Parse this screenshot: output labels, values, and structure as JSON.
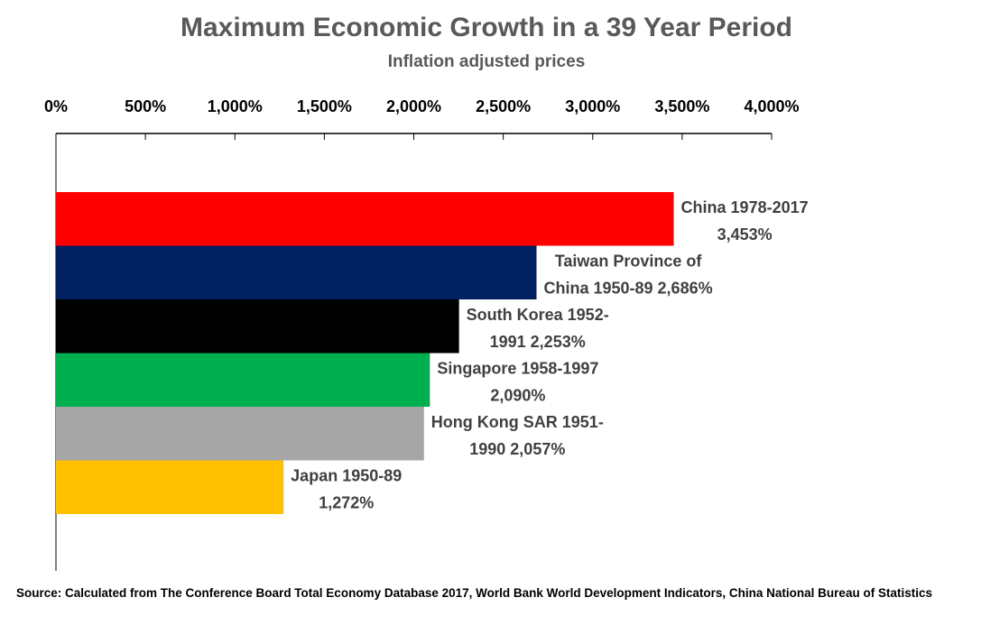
{
  "chart_data": {
    "type": "bar",
    "orientation": "horizontal",
    "title": "Maximum Economic Growth in a 39 Year Period",
    "subtitle": "Inflation adjusted prices",
    "xlabel": "",
    "ylabel": "",
    "xlim": [
      0,
      4000
    ],
    "x_axis_position": "top",
    "tick_values": [
      0,
      500,
      1000,
      1500,
      2000,
      2500,
      3000,
      3500,
      4000
    ],
    "tick_labels": [
      "0%",
      "500%",
      "1,000%",
      "1,500%",
      "2,000%",
      "2,500%",
      "3,000%",
      "3,500%",
      "4,000%"
    ],
    "grid": false,
    "legend": "none",
    "categories": [
      "China 1978-2017",
      "Taiwan Province of China 1950-89",
      "South Korea 1952-1991",
      "Singapore 1958-1997",
      "Hong Kong SAR 1951-1990",
      "Japan 1950-89"
    ],
    "values": [
      3453,
      2686,
      2253,
      2090,
      2057,
      1272
    ],
    "colors": [
      "#ff0000",
      "#002060",
      "#000000",
      "#00b050",
      "#a6a6a6",
      "#ffc000"
    ],
    "data_labels": [
      [
        "China 1978-2017",
        "3,453%"
      ],
      [
        "Taiwan Province of",
        "China 1950-89 2,686%"
      ],
      [
        "South Korea 1952-",
        "1991 2,253%"
      ],
      [
        "Singapore 1958-1997",
        "2,090%"
      ],
      [
        "Hong Kong SAR 1951-",
        "1990 2,057%"
      ],
      [
        "Japan 1950-89",
        "1,272%"
      ]
    ]
  },
  "source_note": "Source: Calculated  from The Conference Board Total Economy Database 2017, World Bank World Development Indicators, China National Bureau of Statistics"
}
